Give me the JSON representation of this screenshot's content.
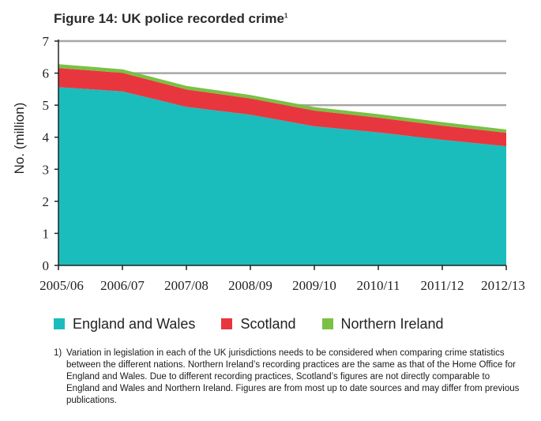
{
  "title": "Figure 14: UK police recorded crime",
  "title_footnote_marker": "1",
  "chart_data": {
    "type": "area",
    "stacked": true,
    "ylabel": "No. (million)",
    "xlabel": "",
    "ylim": [
      0,
      7
    ],
    "yticks": [
      "0",
      "1",
      "2",
      "3",
      "4",
      "5",
      "6",
      "7"
    ],
    "categories": [
      "2005/06",
      "2006/07",
      "2007/08",
      "2008/09",
      "2009/10",
      "2010/11",
      "2011/12",
      "2012/13"
    ],
    "gridlines": true,
    "legend_position": "bottom",
    "series": [
      {
        "name": "England and Wales",
        "color": "#1bbcbc",
        "values": [
          5.56,
          5.43,
          4.95,
          4.7,
          4.34,
          4.15,
          3.92,
          3.72
        ]
      },
      {
        "name": "Scotland",
        "color": "#e8363e",
        "values": [
          0.6,
          0.58,
          0.54,
          0.51,
          0.49,
          0.46,
          0.44,
          0.42
        ]
      },
      {
        "name": "Northern Ireland",
        "color": "#7ac143",
        "values": [
          0.12,
          0.11,
          0.11,
          0.11,
          0.11,
          0.11,
          0.11,
          0.1
        ]
      }
    ]
  },
  "footnote": {
    "number": "1)",
    "text": "Variation in legislation in each of the UK jurisdictions needs to be considered when comparing crime statistics between the different nations. Northern Ireland’s recording practices are the same as that of the Home Office for England and Wales. Due to different recording practices, Scotland’s figures are not directly comparable to England and Wales and Northern Ireland. Figures are from most up to date sources and may differ from previous publications."
  }
}
